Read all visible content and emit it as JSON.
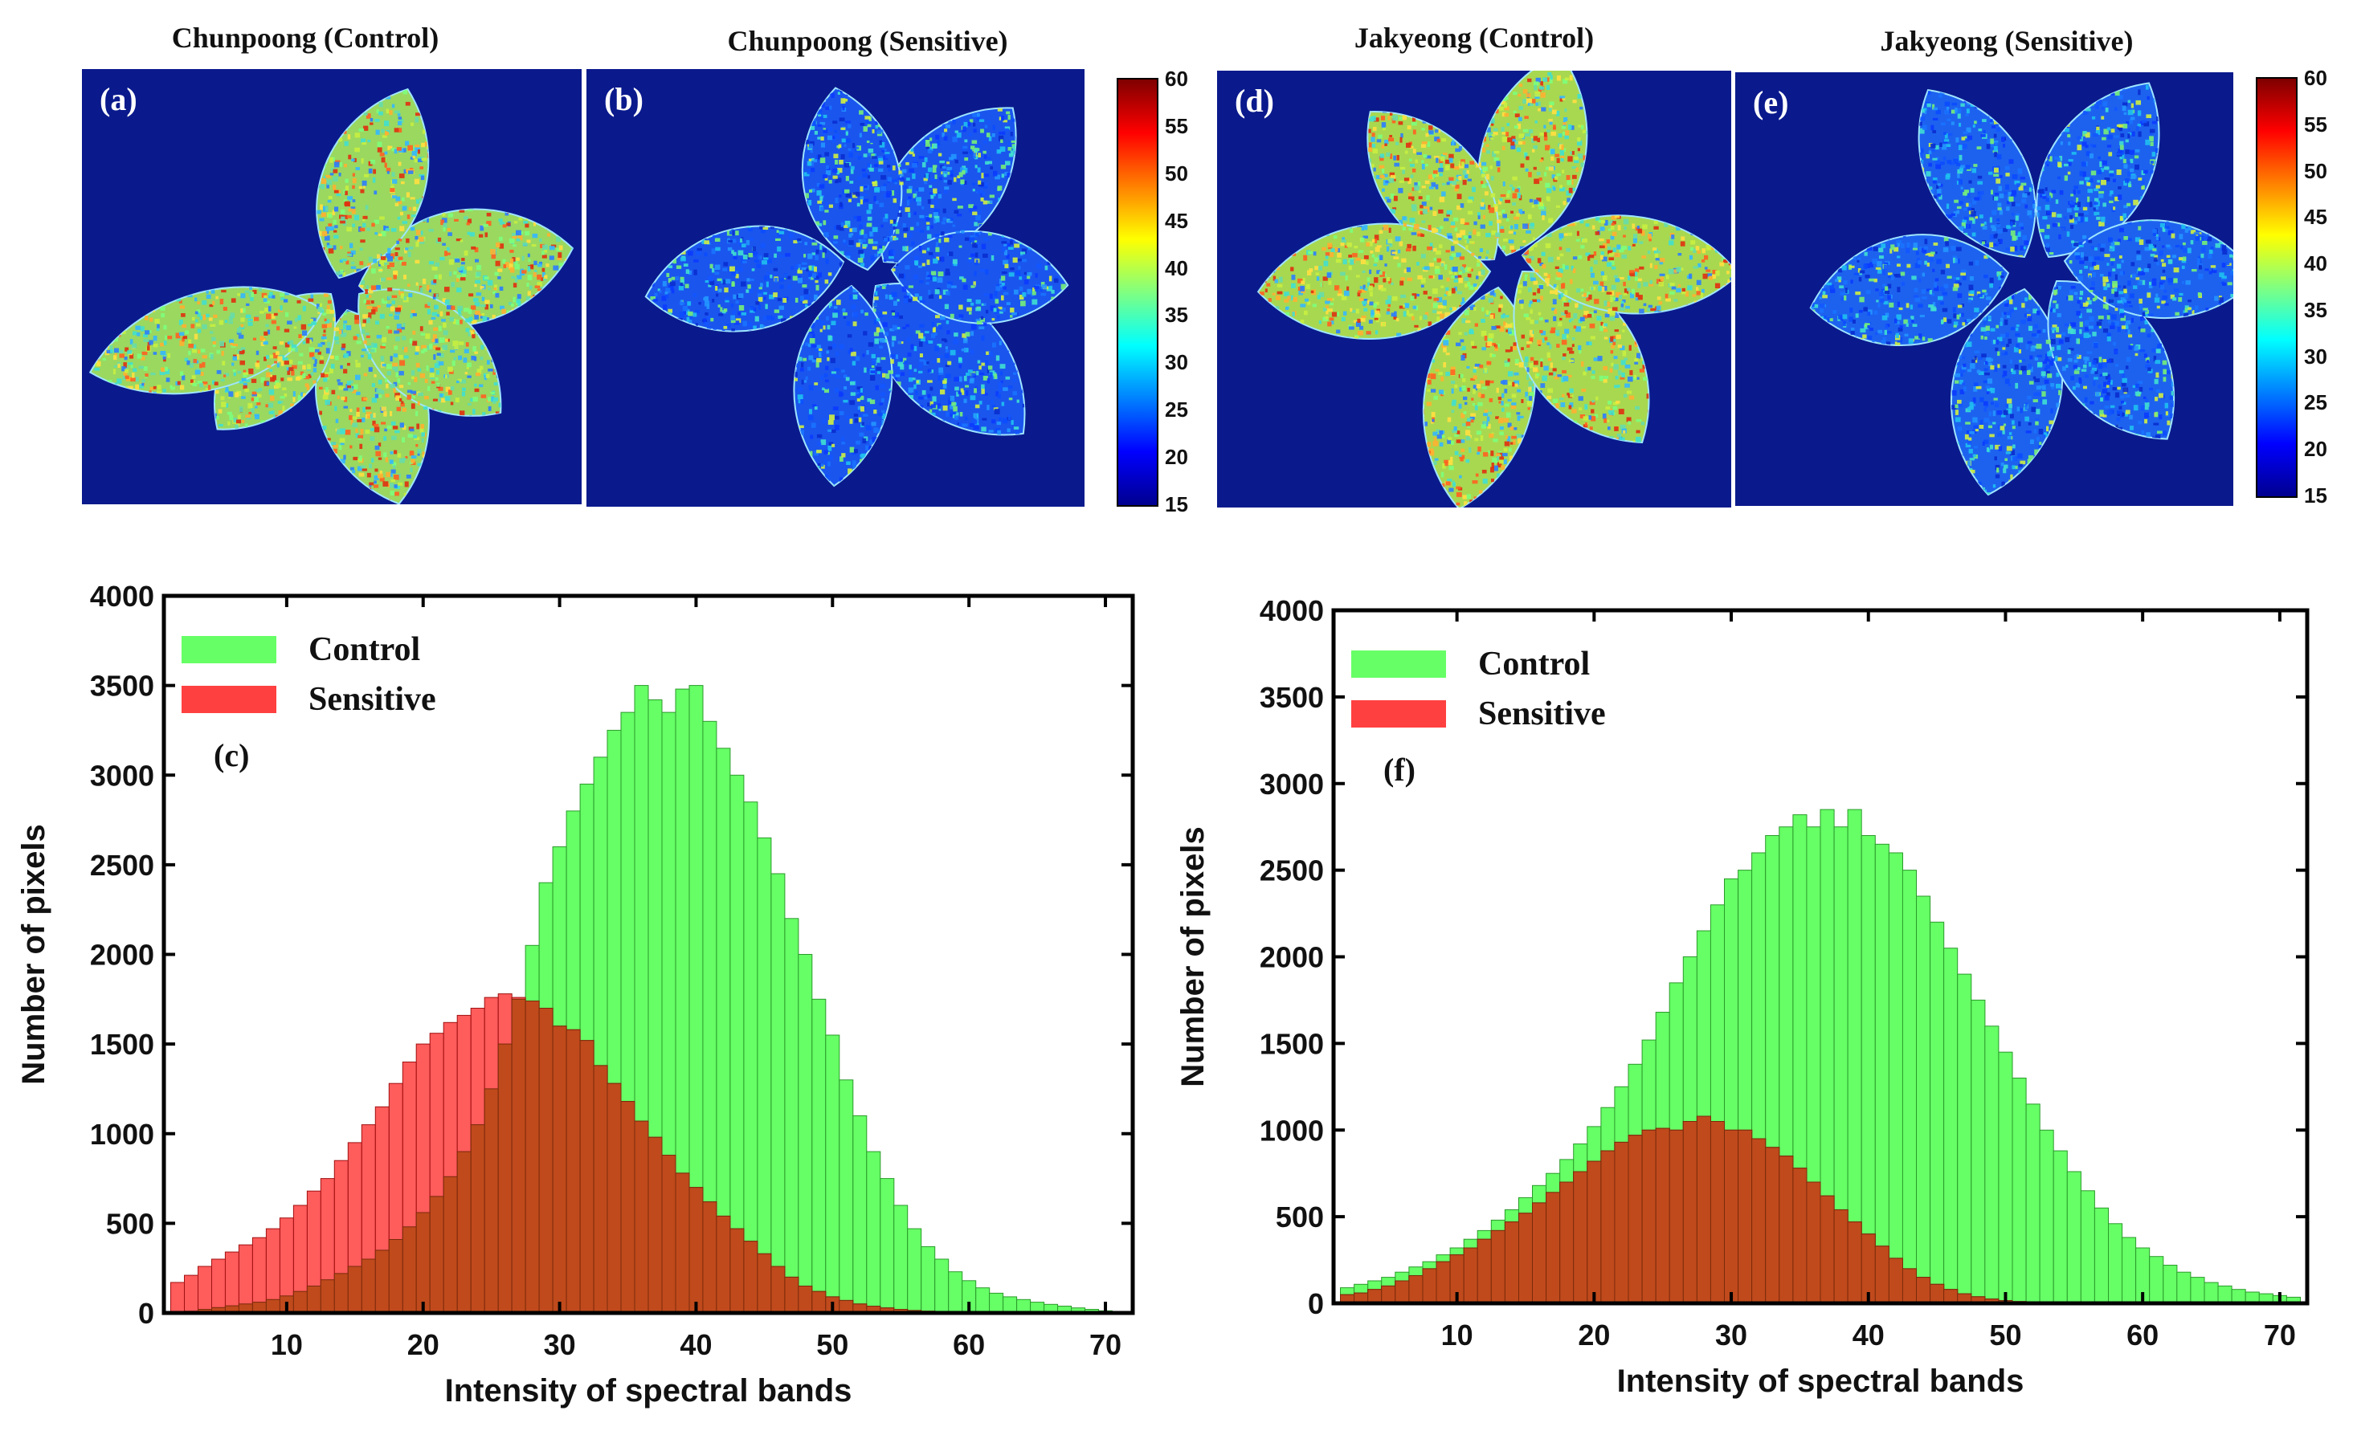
{
  "panels": [
    {
      "id": "a",
      "label": "(a)",
      "title": "Chunpoong (Control)",
      "intensity": "high"
    },
    {
      "id": "b",
      "label": "(b)",
      "title": "Chunpoong (Sensitive)",
      "intensity": "low"
    },
    {
      "id": "d",
      "label": "(d)",
      "title": "Jakyeong (Control)",
      "intensity": "high"
    },
    {
      "id": "e",
      "label": "(e)",
      "title": "Jakyeong (Sensitive)",
      "intensity": "low"
    }
  ],
  "colorbar": {
    "ticks": [
      "60",
      "55",
      "50",
      "45",
      "40",
      "35",
      "30",
      "25",
      "20",
      "15"
    ],
    "colors": [
      "#7f0000",
      "#ff0000",
      "#ff8000",
      "#ffff00",
      "#80ff80",
      "#00ffff",
      "#0080ff",
      "#0000ff",
      "#00008f"
    ]
  },
  "chart_data": [
    {
      "type": "bar",
      "panel_label": "(c)",
      "xlabel": "Intensity of spectral bands",
      "ylabel": "Number of pixels",
      "xlim": [
        1,
        72
      ],
      "ylim": [
        0,
        4000
      ],
      "xticks": [
        10,
        20,
        30,
        40,
        50,
        60,
        70
      ],
      "yticks": [
        0,
        500,
        1000,
        1500,
        2000,
        2500,
        3000,
        3500,
        4000
      ],
      "legend_position": "top-left",
      "series": [
        {
          "name": "Control",
          "color": "#66ff66",
          "centers": [
            2,
            3,
            4,
            5,
            6,
            7,
            8,
            9,
            10,
            11,
            12,
            13,
            14,
            15,
            16,
            17,
            18,
            19,
            20,
            21,
            22,
            23,
            24,
            25,
            26,
            27,
            28,
            29,
            30,
            31,
            32,
            33,
            34,
            35,
            36,
            37,
            38,
            39,
            40,
            41,
            42,
            43,
            44,
            45,
            46,
            47,
            48,
            49,
            50,
            51,
            52,
            53,
            54,
            55,
            56,
            57,
            58,
            59,
            60,
            61,
            62,
            63,
            64,
            65,
            66,
            67,
            68,
            69,
            70,
            71
          ],
          "values": [
            5,
            10,
            20,
            30,
            40,
            50,
            60,
            75,
            95,
            120,
            150,
            185,
            220,
            260,
            300,
            350,
            410,
            480,
            560,
            650,
            760,
            900,
            1050,
            1250,
            1500,
            1750,
            2050,
            2400,
            2600,
            2800,
            2950,
            3100,
            3250,
            3350,
            3500,
            3420,
            3350,
            3480,
            3500,
            3300,
            3150,
            3000,
            2850,
            2650,
            2450,
            2200,
            2000,
            1750,
            1550,
            1300,
            1100,
            900,
            750,
            600,
            470,
            370,
            300,
            230,
            180,
            140,
            110,
            90,
            75,
            60,
            48,
            38,
            28,
            20,
            12,
            8
          ]
        },
        {
          "name": "Sensitive",
          "color": "#ff4040",
          "centers": [
            2,
            3,
            4,
            5,
            6,
            7,
            8,
            9,
            10,
            11,
            12,
            13,
            14,
            15,
            16,
            17,
            18,
            19,
            20,
            21,
            22,
            23,
            24,
            25,
            26,
            27,
            28,
            29,
            30,
            31,
            32,
            33,
            34,
            35,
            36,
            37,
            38,
            39,
            40,
            41,
            42,
            43,
            44,
            45,
            46,
            47,
            48,
            49,
            50,
            51,
            52,
            53,
            54,
            55,
            56,
            57,
            58,
            59,
            60,
            61,
            62,
            63,
            64,
            65,
            66,
            67,
            68,
            69,
            70,
            71
          ],
          "values": [
            170,
            210,
            260,
            300,
            340,
            380,
            420,
            470,
            530,
            600,
            680,
            750,
            850,
            950,
            1050,
            1150,
            1280,
            1400,
            1500,
            1560,
            1620,
            1660,
            1700,
            1760,
            1780,
            1760,
            1740,
            1700,
            1600,
            1580,
            1520,
            1380,
            1280,
            1180,
            1070,
            980,
            880,
            780,
            700,
            620,
            540,
            470,
            400,
            330,
            260,
            200,
            150,
            120,
            90,
            70,
            50,
            38,
            28,
            20,
            14,
            10,
            8,
            6,
            5,
            4,
            3,
            3,
            2,
            2,
            1,
            1,
            1,
            1,
            0,
            0
          ]
        }
      ]
    },
    {
      "type": "bar",
      "panel_label": "(f)",
      "xlabel": "Intensity of spectral bands",
      "ylabel": "Number of pixels",
      "xlim": [
        1,
        72
      ],
      "ylim": [
        0,
        4000
      ],
      "xticks": [
        10,
        20,
        30,
        40,
        50,
        60,
        70
      ],
      "yticks": [
        0,
        500,
        1000,
        1500,
        2000,
        2500,
        3000,
        3500,
        4000
      ],
      "legend_position": "top-left",
      "series": [
        {
          "name": "Control",
          "color": "#66ff66",
          "centers": [
            2,
            3,
            4,
            5,
            6,
            7,
            8,
            9,
            10,
            11,
            12,
            13,
            14,
            15,
            16,
            17,
            18,
            19,
            20,
            21,
            22,
            23,
            24,
            25,
            26,
            27,
            28,
            29,
            30,
            31,
            32,
            33,
            34,
            35,
            36,
            37,
            38,
            39,
            40,
            41,
            42,
            43,
            44,
            45,
            46,
            47,
            48,
            49,
            50,
            51,
            52,
            53,
            54,
            55,
            56,
            57,
            58,
            59,
            60,
            61,
            62,
            63,
            64,
            65,
            66,
            67,
            68,
            69,
            70,
            71
          ],
          "values": [
            90,
            110,
            130,
            150,
            180,
            210,
            240,
            280,
            320,
            370,
            420,
            480,
            540,
            610,
            680,
            750,
            830,
            920,
            1020,
            1130,
            1250,
            1380,
            1520,
            1680,
            1850,
            2000,
            2150,
            2300,
            2450,
            2500,
            2600,
            2700,
            2750,
            2820,
            2750,
            2850,
            2750,
            2850,
            2700,
            2650,
            2600,
            2500,
            2350,
            2200,
            2050,
            1900,
            1750,
            1600,
            1450,
            1300,
            1150,
            1000,
            880,
            760,
            650,
            550,
            460,
            380,
            320,
            270,
            220,
            180,
            150,
            120,
            100,
            80,
            65,
            55,
            45,
            35
          ]
        },
        {
          "name": "Sensitive",
          "color": "#ff4040",
          "centers": [
            2,
            3,
            4,
            5,
            6,
            7,
            8,
            9,
            10,
            11,
            12,
            13,
            14,
            15,
            16,
            17,
            18,
            19,
            20,
            21,
            22,
            23,
            24,
            25,
            26,
            27,
            28,
            29,
            30,
            31,
            32,
            33,
            34,
            35,
            36,
            37,
            38,
            39,
            40,
            41,
            42,
            43,
            44,
            45,
            46,
            47,
            48,
            49,
            50,
            51,
            52,
            53,
            54,
            55,
            56,
            57,
            58,
            59,
            60,
            61,
            62,
            63,
            64,
            65,
            66,
            67,
            68,
            69,
            70,
            71
          ],
          "values": [
            50,
            60,
            80,
            100,
            130,
            160,
            200,
            240,
            280,
            320,
            370,
            420,
            470,
            520,
            580,
            640,
            700,
            760,
            820,
            880,
            930,
            970,
            1000,
            1010,
            1000,
            1050,
            1080,
            1050,
            1000,
            1000,
            950,
            900,
            850,
            780,
            700,
            620,
            540,
            470,
            400,
            330,
            260,
            200,
            150,
            110,
            80,
            55,
            38,
            25,
            16,
            10,
            6,
            4,
            2,
            1,
            1,
            0,
            0,
            0,
            0,
            0,
            0,
            0,
            0,
            0,
            0,
            0,
            0,
            0,
            0,
            0
          ]
        }
      ]
    }
  ]
}
